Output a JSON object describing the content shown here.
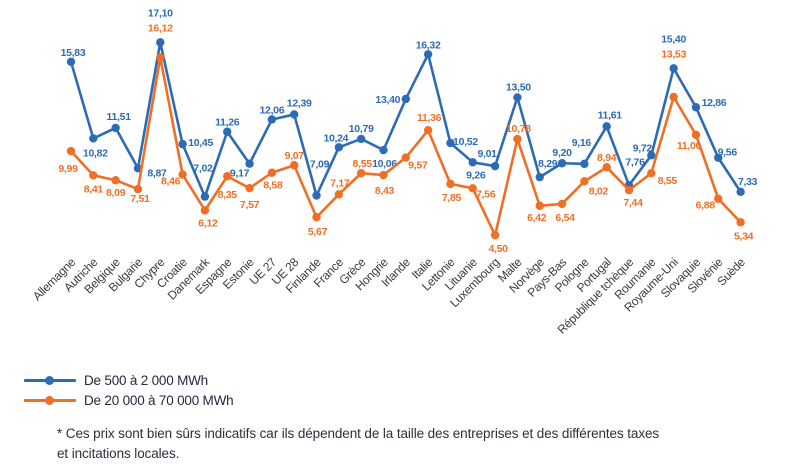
{
  "chart_data": {
    "type": "line",
    "title": "",
    "xlabel": "",
    "ylabel": "",
    "ylim": [
      4,
      18
    ],
    "grid": false,
    "axes_visible": false,
    "value_labels": true,
    "decimal_separator": ",",
    "legend_position": "bottom-left",
    "categories": [
      "Allemagne",
      "Autriche",
      "Belgique",
      "Bulgarie",
      "Chypre",
      "Croatie",
      "Danemark",
      "Espagne",
      "Estonie",
      "UE 27",
      "UE 28",
      "Finlande",
      "France",
      "Grèce",
      "Hongrie",
      "Irlande",
      "Italie",
      "Lettonie",
      "Lituanie",
      "Luxembourg",
      "Malte",
      "Norvège",
      "Pays-Bas",
      "Pologne",
      "Portugal",
      "République tchèque",
      "Roumanie",
      "Royaume-Uni",
      "Slovaquie",
      "Slovénie",
      "Suède"
    ],
    "series": [
      {
        "name": "De 500 à 2 000 MWh",
        "color": "#2d6cb5",
        "values": [
          15.83,
          10.82,
          11.51,
          8.87,
          17.1,
          10.45,
          7.02,
          11.26,
          9.17,
          12.06,
          12.39,
          7.09,
          10.24,
          10.79,
          10.06,
          13.4,
          16.32,
          10.52,
          9.26,
          9.01,
          13.5,
          8.29,
          9.2,
          9.16,
          11.61,
          7.76,
          9.72,
          15.4,
          12.86,
          9.56,
          7.33
        ]
      },
      {
        "name": "De 20 000 à 70 000 MWh",
        "color": "#f06f26",
        "values": [
          9.99,
          8.41,
          8.09,
          7.51,
          16.12,
          8.46,
          6.12,
          8.35,
          7.57,
          8.58,
          9.07,
          5.67,
          7.17,
          8.55,
          8.43,
          9.57,
          11.36,
          7.85,
          7.56,
          4.5,
          10.78,
          6.42,
          6.54,
          8.02,
          8.94,
          7.44,
          8.55,
          13.53,
          11.06,
          6.88,
          5.34
        ]
      }
    ]
  },
  "legend": {
    "items": [
      {
        "label": "De 500 à 2 000 MWh",
        "color": "#2d6cb5"
      },
      {
        "label": "De 20 000 à 70 000 MWh",
        "color": "#f06f26"
      }
    ]
  },
  "footnote": {
    "lines": [
      "* Ces prix sont bien sûrs indicatifs car ils dépendent de la taille des entreprises et des différentes taxes",
      "et incitations locales."
    ]
  }
}
